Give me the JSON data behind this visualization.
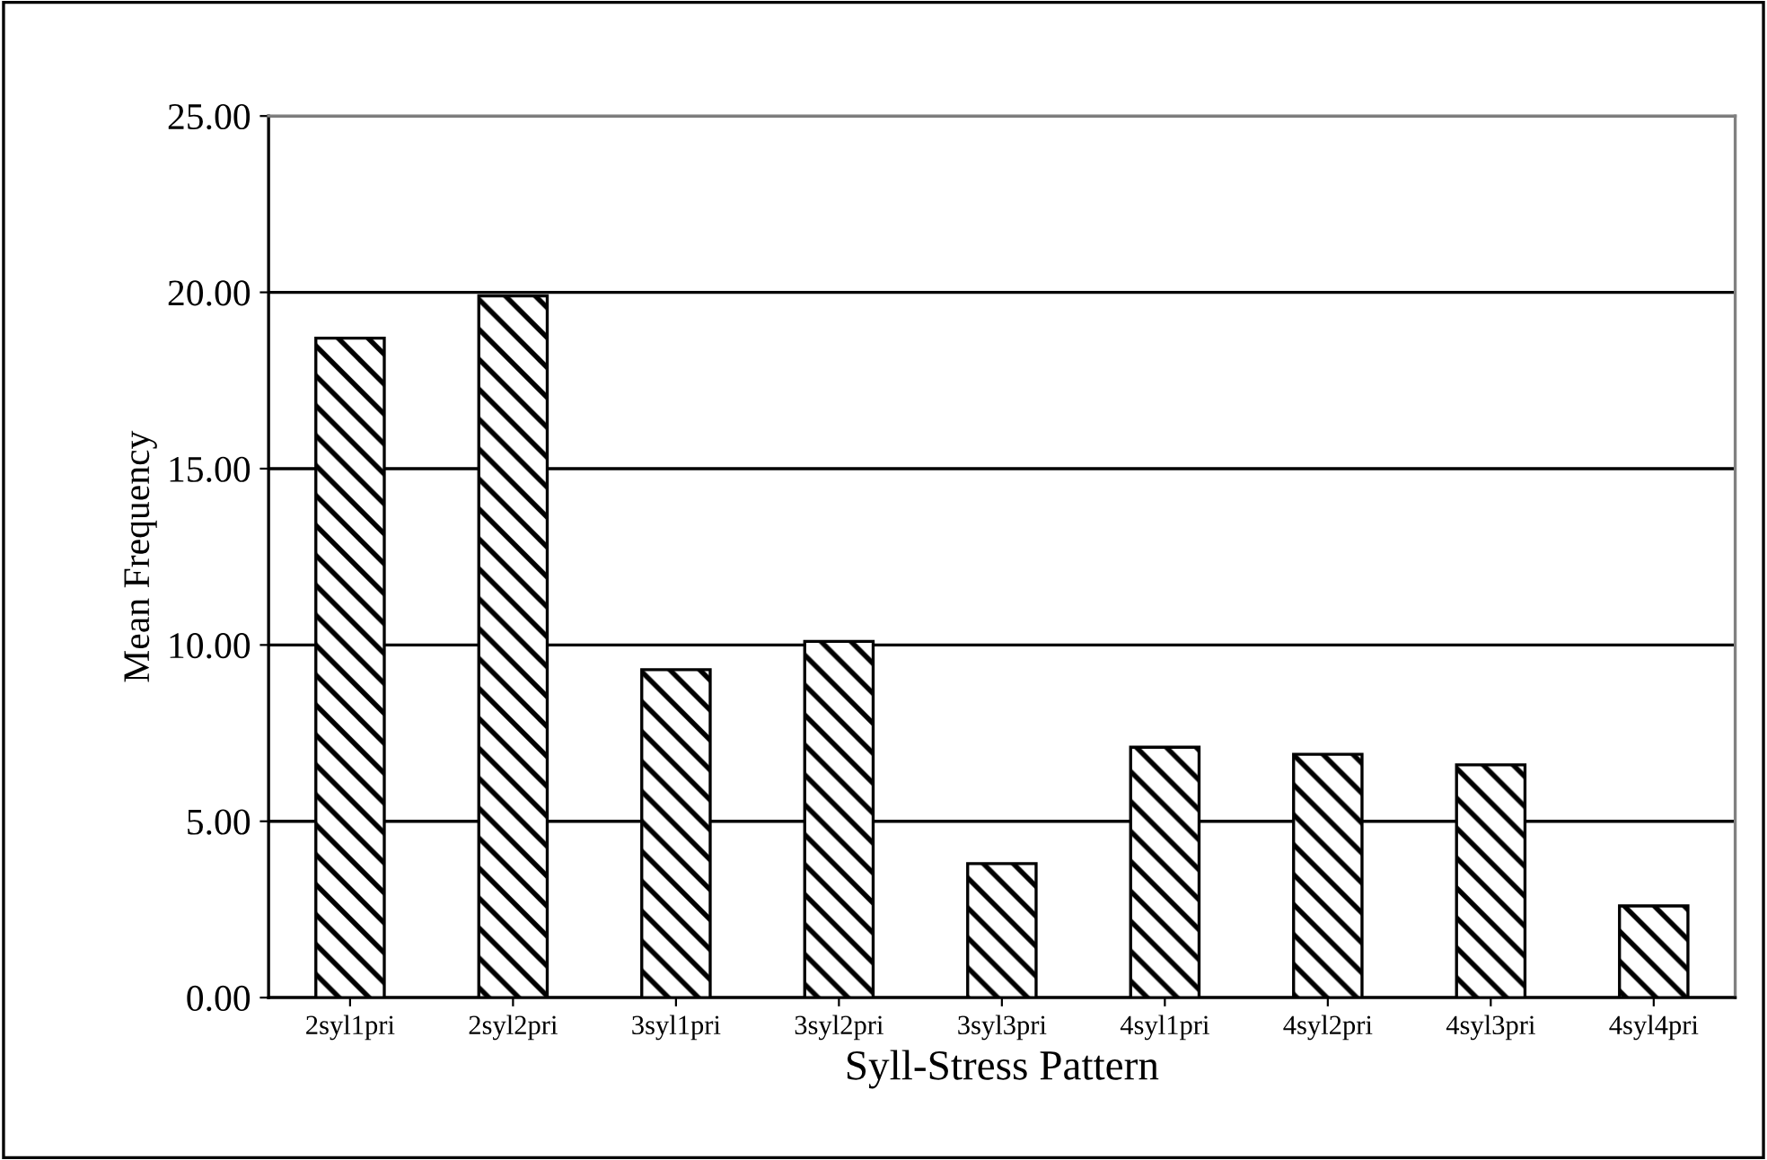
{
  "chart_data": {
    "type": "bar",
    "xlabel": "Syll-Stress Pattern",
    "ylabel": "Mean Frequency",
    "categories": [
      "2syl1pri",
      "2syl2pri",
      "3syl1pri",
      "3syl2pri",
      "3syl3pri",
      "4syl1pri",
      "4syl2pri",
      "4syl3pri",
      "4syl4pri"
    ],
    "values": [
      18.7,
      19.9,
      9.3,
      10.1,
      3.8,
      7.1,
      6.9,
      6.6,
      2.6
    ],
    "color": "#000000",
    "ylim": [
      0,
      25
    ],
    "yticks": [
      {
        "value": 0,
        "label": "0.00"
      },
      {
        "value": 5,
        "label": "5.00"
      },
      {
        "value": 10,
        "label": "10.00"
      },
      {
        "value": 15,
        "label": "15.00"
      },
      {
        "value": 20,
        "label": "20.00"
      },
      {
        "value": 25,
        "label": "25.00"
      }
    ],
    "grid": "y",
    "legend": false
  }
}
